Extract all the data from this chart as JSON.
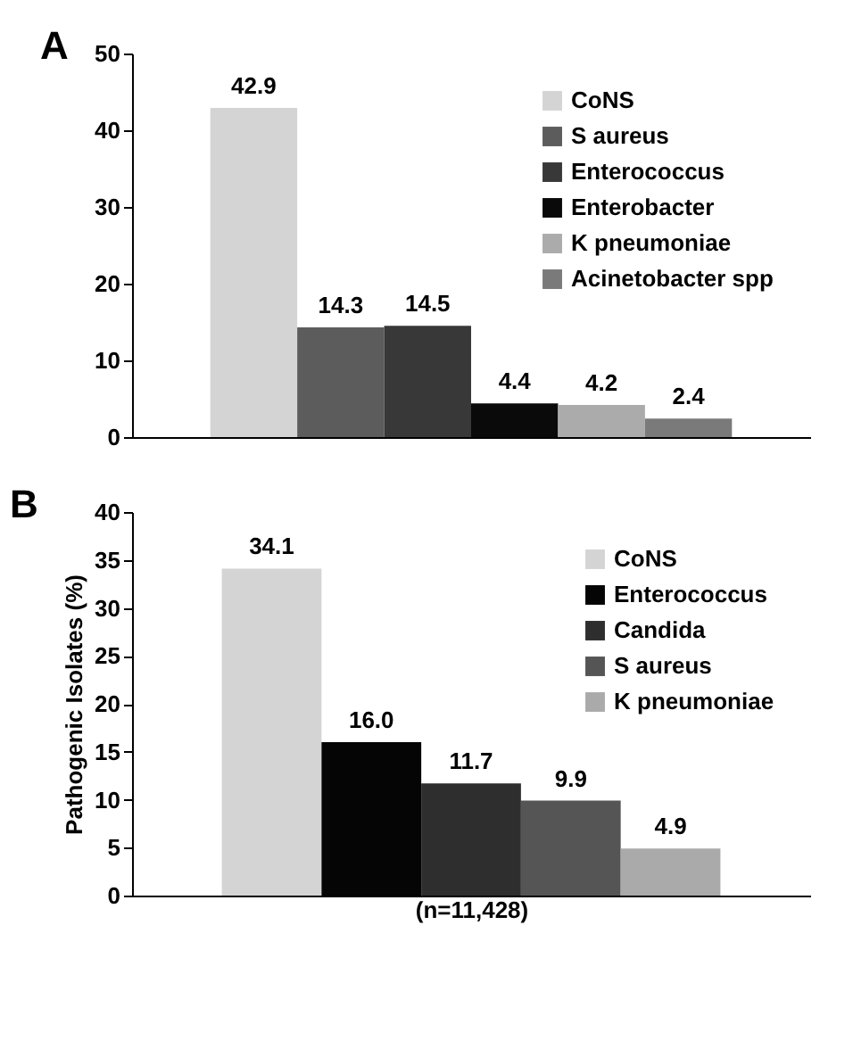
{
  "chart_data": [
    {
      "type": "bar",
      "title": "A",
      "categories": [
        null
      ],
      "ylim": [
        0,
        50
      ],
      "yticks": [
        0,
        10,
        20,
        30,
        40,
        50
      ],
      "grid": false,
      "legend": "top right",
      "data_labels": true,
      "series": [
        {
          "name": "CoNS",
          "color": "#d4d4d4",
          "values": [
            42.9
          ]
        },
        {
          "name": "S aureus",
          "color": "#5c5c5c",
          "values": [
            14.3
          ]
        },
        {
          "name": "Enterococcus",
          "color": "#383838",
          "values": [
            14.5
          ]
        },
        {
          "name": "Enterobacter",
          "color": "#0a0a0a",
          "values": [
            4.4
          ]
        },
        {
          "name": "K pneumoniae",
          "color": "#ababab",
          "values": [
            4.2
          ]
        },
        {
          "name": "Acinetobacter spp",
          "color": "#7a7a7a",
          "values": [
            2.4
          ]
        }
      ]
    },
    {
      "type": "bar",
      "title": "B",
      "categories": [
        null
      ],
      "xlabel": "(n=11,428)",
      "ylabel": "Pathogenic Isolates (%)",
      "ylim": [
        0,
        40
      ],
      "yticks": [
        0,
        5,
        10,
        15,
        20,
        25,
        30,
        35,
        40
      ],
      "grid": false,
      "legend": "top right",
      "series": [
        {
          "name": "CoNS",
          "color": "#d4d4d4",
          "values": [
            34.1
          ],
          "value_labels": [
            "34.1"
          ]
        },
        {
          "name": "Enterococcus",
          "color": "#050505",
          "values": [
            16.0
          ],
          "value_labels": [
            "16.0"
          ]
        },
        {
          "name": "Candida",
          "color": "#2e2e2e",
          "values": [
            11.7
          ],
          "value_labels": [
            "11.7"
          ]
        },
        {
          "name": "S aureus",
          "color": "#555555",
          "values": [
            9.9
          ],
          "value_labels": [
            "9.9"
          ]
        },
        {
          "name": "K pneumoniae",
          "color": "#aaaaaa",
          "values": [
            4.9
          ],
          "value_labels": [
            "4.9"
          ]
        }
      ]
    }
  ]
}
